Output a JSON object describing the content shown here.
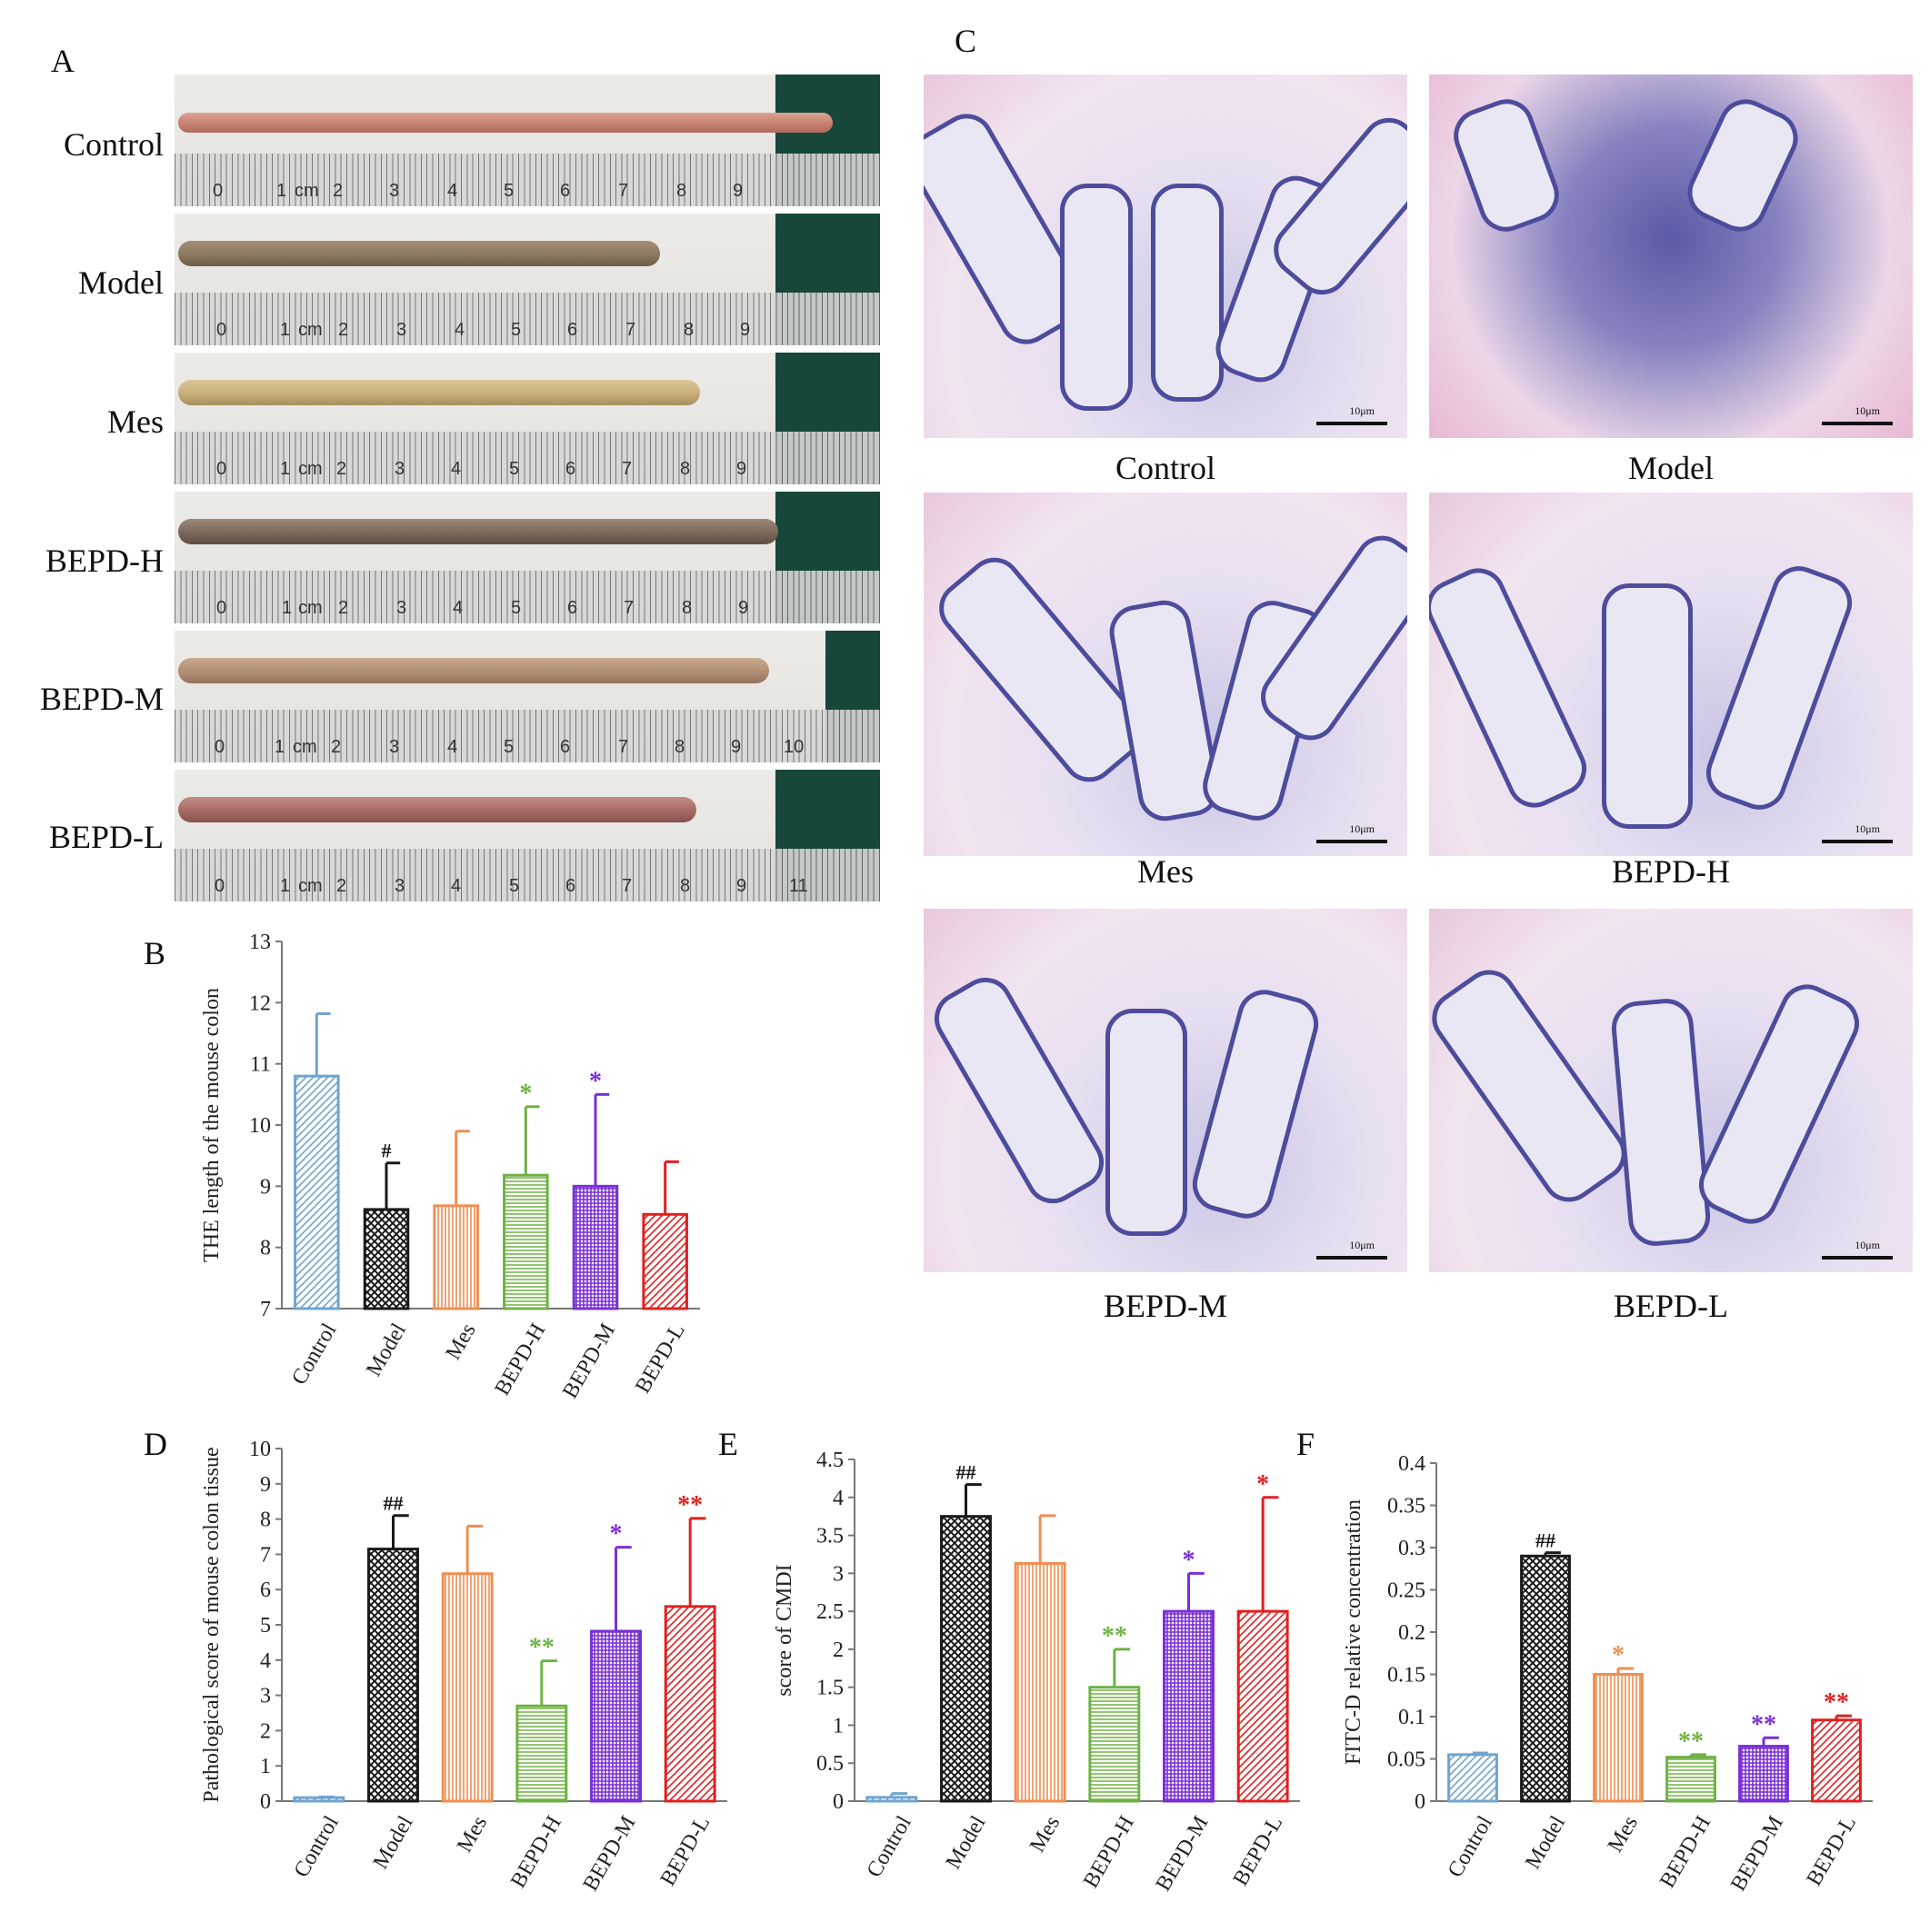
{
  "panels": {
    "A": "A",
    "B": "B",
    "C": "C",
    "D": "D",
    "E": "E",
    "F": "F"
  },
  "photo_labels": [
    "Control",
    "Model",
    "Mes",
    "BEPD-H",
    "BEPD-M",
    "BEPD-L"
  ],
  "ruler": {
    "unit": "cm",
    "ticks": [
      "0",
      "1",
      "2",
      "3",
      "4",
      "5",
      "6",
      "7",
      "8",
      "9",
      "10",
      "11"
    ]
  },
  "histology": {
    "labels": [
      "Control",
      "Model",
      "Mes",
      "BEPD-H",
      "BEPD-M",
      "BEPD-L"
    ],
    "scale_text": "10μm"
  },
  "colors": {
    "Control": "#6fa4cf",
    "Model": "#1a1a1a",
    "Mes": "#ef8e52",
    "BEPD-H": "#6fb244",
    "BEPD-M": "#7a2fd6",
    "BEPD-L": "#e02020"
  },
  "chart_data": [
    {
      "id": "B",
      "type": "bar",
      "categories": [
        "Control",
        "Model",
        "Mes",
        "BEPD-H",
        "BEPD-M",
        "BEPD-L"
      ],
      "values": [
        10.8,
        8.62,
        8.68,
        9.18,
        9.0,
        8.54
      ],
      "errors": [
        1.02,
        0.76,
        1.22,
        1.12,
        1.5,
        0.86
      ],
      "marks": [
        "",
        "#",
        "",
        "*",
        "*",
        ""
      ],
      "ylabel": "THE length of the mouse colon",
      "ylim": [
        7,
        13
      ],
      "yticks": [
        7,
        8,
        9,
        10,
        11,
        12,
        13
      ],
      "yticklabels": [
        "7",
        "8",
        "9",
        "10",
        "11",
        "12",
        "13"
      ]
    },
    {
      "id": "D",
      "type": "bar",
      "categories": [
        "Control",
        "Model",
        "Mes",
        "BEPD-H",
        "BEPD-M",
        "BEPD-L"
      ],
      "values": [
        0.1,
        7.15,
        6.45,
        2.7,
        4.82,
        5.52
      ],
      "errors": [
        0.02,
        0.95,
        1.35,
        1.28,
        2.38,
        2.5
      ],
      "marks": [
        "",
        "##",
        "",
        "**",
        "*",
        "**"
      ],
      "ylabel": "Pathological score of mouse colon tissue",
      "ylim": [
        0,
        10
      ],
      "yticks": [
        0,
        1,
        2,
        3,
        4,
        5,
        6,
        7,
        8,
        9,
        10
      ],
      "yticklabels": [
        "0",
        "1",
        "2",
        "3",
        "4",
        "5",
        "6",
        "7",
        "8",
        "9",
        "10"
      ]
    },
    {
      "id": "E",
      "type": "bar",
      "categories": [
        "Control",
        "Model",
        "Mes",
        "BEPD-H",
        "BEPD-M",
        "BEPD-L"
      ],
      "values": [
        0.05,
        3.75,
        3.13,
        1.5,
        2.5,
        2.5
      ],
      "errors": [
        0.05,
        0.42,
        0.63,
        0.5,
        0.5,
        1.5
      ],
      "marks": [
        "",
        "##",
        "",
        "**",
        "*",
        "*"
      ],
      "ylabel": "score of CMDI",
      "ylim": [
        0,
        4.5
      ],
      "yticks": [
        0,
        0.5,
        1,
        1.5,
        2,
        2.5,
        3,
        3.5,
        4,
        4.5
      ],
      "yticklabels": [
        "0",
        "0.5",
        "1",
        "1.5",
        "2",
        "2.5",
        "3",
        "3.5",
        "4",
        "4.5"
      ]
    },
    {
      "id": "F",
      "type": "bar",
      "categories": [
        "Control",
        "Model",
        "Mes",
        "BEPD-H",
        "BEPD-M",
        "BEPD-L"
      ],
      "values": [
        0.055,
        0.29,
        0.15,
        0.052,
        0.065,
        0.096
      ],
      "errors": [
        0.002,
        0.004,
        0.007,
        0.003,
        0.01,
        0.005
      ],
      "marks": [
        "",
        "##",
        "*",
        "**",
        "**",
        "**"
      ],
      "ylabel": "FITC-D relative concentration",
      "ylim": [
        0,
        0.4
      ],
      "yticks": [
        0,
        0.05,
        0.1,
        0.15,
        0.2,
        0.25,
        0.3,
        0.35,
        0.4
      ],
      "yticklabels": [
        "0",
        "0.05",
        "0.1",
        "0.15",
        "0.2",
        "0.25",
        "0.3",
        "0.35",
        "0.4"
      ]
    }
  ]
}
